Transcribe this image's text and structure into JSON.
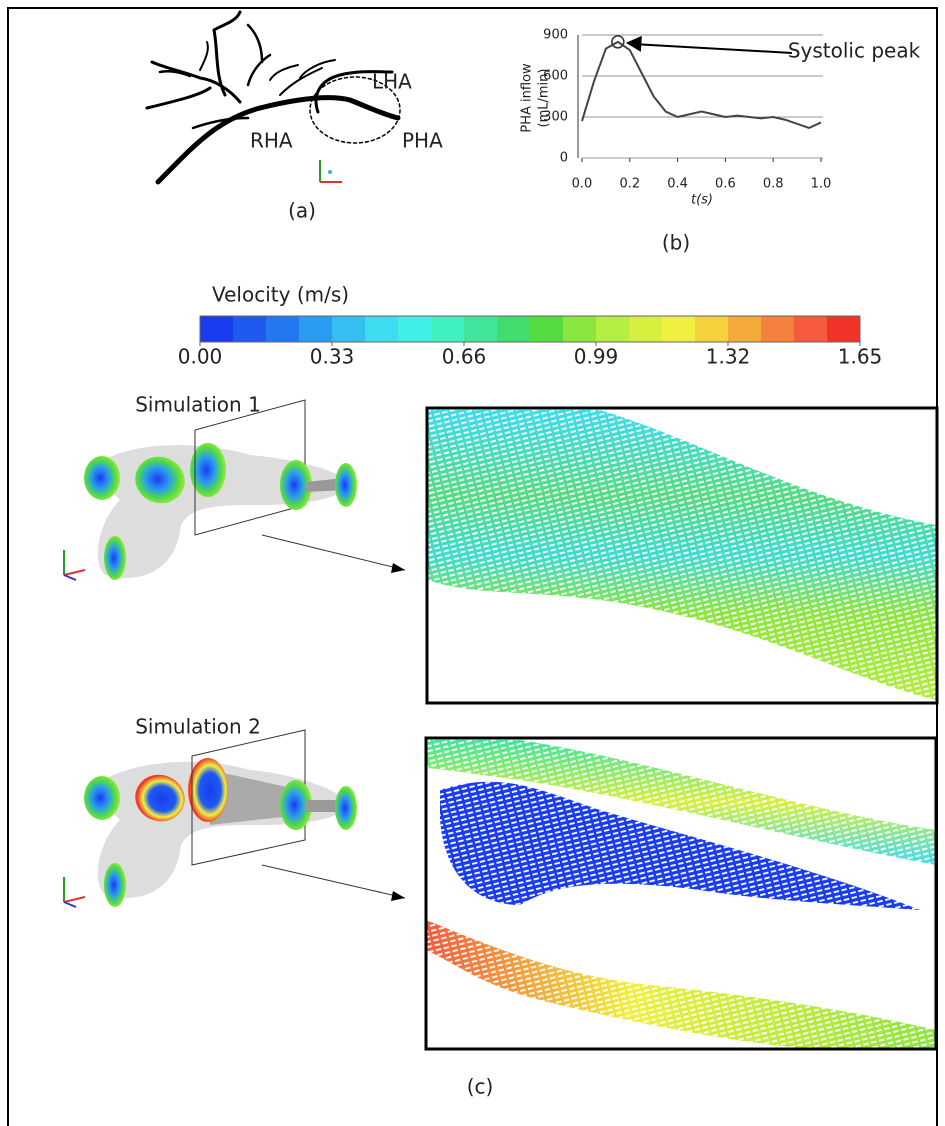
{
  "panel_a": {
    "labels": [
      "LHA",
      "RHA",
      "PHA"
    ],
    "caption": "(a)"
  },
  "chart_data": {
    "type": "line",
    "ylabel": [
      "PHA inflow",
      "(mL/min)"
    ],
    "xlabel": "t(s)",
    "annotation": "Systolic peak",
    "caption": "(b)",
    "x": [
      0,
      0.05,
      0.1,
      0.15,
      0.2,
      0.25,
      0.3,
      0.35,
      0.4,
      0.45,
      0.5,
      0.55,
      0.6,
      0.65,
      0.7,
      0.75,
      0.8,
      0.85,
      0.9,
      0.95,
      1.0
    ],
    "values": [
      270,
      560,
      800,
      850,
      790,
      620,
      450,
      340,
      300,
      320,
      340,
      320,
      300,
      310,
      300,
      290,
      300,
      280,
      250,
      220,
      260
    ],
    "color": "#444444",
    "xlim": [
      0,
      1
    ],
    "ylim": [
      0,
      900
    ],
    "xticks": [
      {
        "value": 0,
        "label": "0.0"
      },
      0.2,
      0.4,
      0.6,
      0.8,
      {
        "value": 1,
        "label": "1.0"
      }
    ],
    "yticks": [
      0,
      300,
      600,
      900
    ],
    "grid": true
  },
  "colorbar": {
    "title": "Velocity (m/s)",
    "lim": [
      0,
      1.65
    ],
    "ticks": [
      {
        "value": 0,
        "label": "0.00"
      },
      {
        "value": 0.33,
        "label": "0.33"
      },
      {
        "value": 0.66,
        "label": "0.66"
      },
      {
        "value": 0.99,
        "label": "0.99"
      },
      {
        "value": 1.32,
        "label": "1.32"
      },
      {
        "value": 1.65,
        "label": "1.65"
      }
    ],
    "colors": [
      "#1a3cf0",
      "#1e5af0",
      "#2378f0",
      "#2a9cf0",
      "#34bff0",
      "#3ddcf0",
      "#40f0e6",
      "#40f0c0",
      "#40e69a",
      "#40dc6e",
      "#55dc40",
      "#8ce640",
      "#b4ee40",
      "#d7f040",
      "#f0f040",
      "#f5d23c",
      "#f5aa3c",
      "#f5823c",
      "#f55a3c",
      "#f03228"
    ]
  },
  "panel_c": {
    "simulations": [
      "Simulation 1",
      "Simulation 2"
    ],
    "caption": "(c)"
  }
}
